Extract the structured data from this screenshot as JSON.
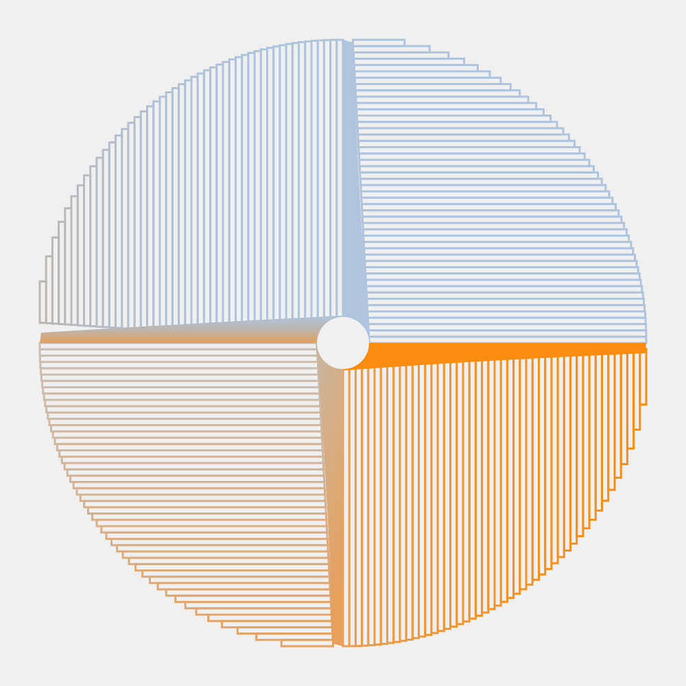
{
  "artwork": {
    "background_color": "#f0f0f0",
    "colors": {
      "blue": "#b0c4de",
      "orange": "#fa8c0f",
      "tan": "#e6a05c",
      "grey": "#bcb6ae"
    },
    "quadrants": [
      {
        "name": "top-left",
        "line_direction": "vertical",
        "color": "#b0c4de"
      },
      {
        "name": "top-right",
        "line_direction": "horizontal",
        "color": "#b0c4de"
      },
      {
        "name": "bottom-right",
        "line_direction": "vertical",
        "color": "#fa8c0f"
      },
      {
        "name": "bottom-left",
        "line_direction": "horizontal",
        "color": "#d9b28a"
      }
    ],
    "lines_per_quadrant": 48,
    "center_hole": true
  }
}
